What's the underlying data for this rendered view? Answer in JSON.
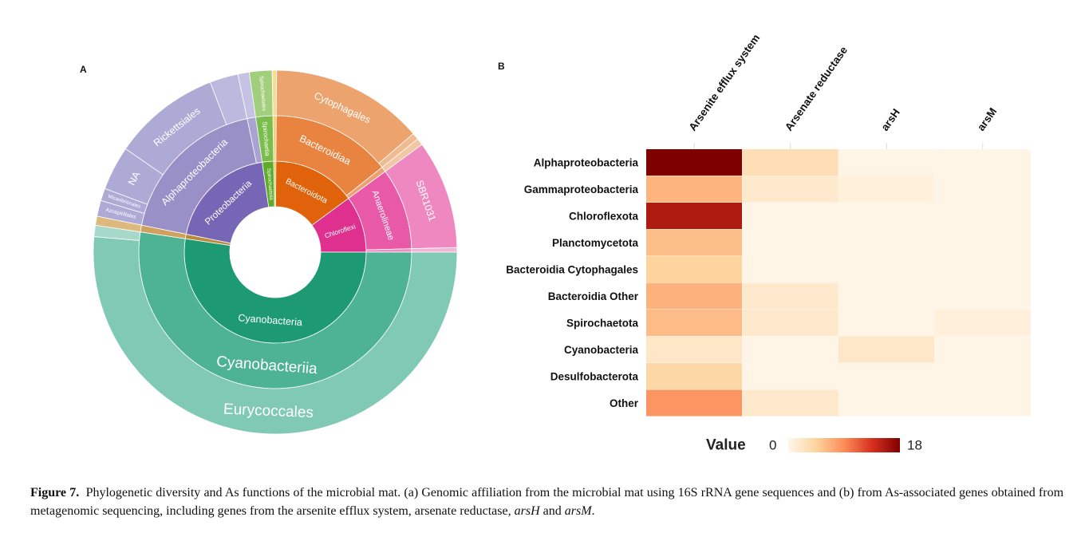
{
  "panels": {
    "a_label": "A",
    "b_label": "B"
  },
  "caption": {
    "figure_label": "Figure 7.",
    "text_1": "Phylogenetic diversity and As functions of the microbial mat. (a) Genomic affiliation from the microbial mat using 16S rRNA gene sequences and (b) from As-associated genes obtained from metagenomic sequencing, including genes from the arsenite efflux system, arsenate reductase, ",
    "italic_1": "arsH",
    "text_2": " and ",
    "italic_2": "arsM",
    "text_3": "."
  },
  "chart_data": [
    {
      "type": "sunburst",
      "unit": "relative abundance (%)",
      "nodes": [
        {
          "name": "",
          "value": 0.4,
          "color": "#f2c14e",
          "children": [
            {
              "name": "",
              "value": 0.4,
              "color": "#f5cf70",
              "children": [
                {
                  "name": "",
                  "value": 0.4,
                  "color": "#f7dc95"
                }
              ]
            }
          ]
        },
        {
          "name": "Bacteroidota",
          "value": 14.7,
          "color": "#e0620a",
          "children": [
            {
              "name": "Bacteroidiaa",
              "value": 14.1,
              "color": "#e8843f",
              "children": [
                {
                  "name": "Cytophagales",
                  "value": 13.5,
                  "color": "#eca36d"
                },
                {
                  "name": "",
                  "value": 0.6,
                  "color": "#f0bb90"
                }
              ]
            },
            {
              "name": "",
              "value": 0.6,
              "color": "#eda070",
              "children": [
                {
                  "name": "",
                  "value": 0.6,
                  "color": "#f2c7a5"
                }
              ]
            }
          ]
        },
        {
          "name": "Chloroflexi",
          "value": 10.0,
          "color": "#e0308f",
          "children": [
            {
              "name": "Anaerolineae",
              "value": 9.6,
              "color": "#e85aa8",
              "children": [
                {
                  "name": "SBR1031",
                  "value": 9.6,
                  "color": "#ef88c0"
                }
              ]
            },
            {
              "name": "",
              "value": 0.4,
              "color": "#ee8cc0",
              "children": [
                {
                  "name": "",
                  "value": 0.4,
                  "color": "#f4b3d6"
                }
              ]
            }
          ]
        },
        {
          "name": "Cyanobacteria",
          "value": 52.0,
          "color": "#1e9a72",
          "children": [
            {
              "name": "Cyanobacteriia",
              "value": 52.0,
              "color": "#4db393",
              "children": [
                {
                  "name": "Eurycoccales",
                  "value": 51.0,
                  "color": "#80c9b2"
                },
                {
                  "name": "",
                  "value": 1.0,
                  "color": "#a6d9c9"
                }
              ]
            }
          ]
        },
        {
          "name": "",
          "value": 0.8,
          "color": "#b98a3a",
          "children": [
            {
              "name": "",
              "value": 0.8,
              "color": "#cfa15c",
              "children": [
                {
                  "name": "",
                  "value": 0.8,
                  "color": "#ddb97e"
                }
              ]
            }
          ]
        },
        {
          "name": "Proteobacteria",
          "value": 19.4,
          "color": "#7766b5",
          "children": [
            {
              "name": "Alphaproteobacteria",
              "value": 18.4,
              "color": "#9990c8",
              "children": [
                {
                  "name": "Azospirillales",
                  "value": 1.4,
                  "color": "#aeaad6"
                },
                {
                  "name": "Micavibrionales",
                  "value": 1.1,
                  "color": "#aeaad6"
                },
                {
                  "name": "NA",
                  "value": 3.9,
                  "color": "#aeaad6"
                },
                {
                  "name": "Rickettsiales",
                  "value": 9.5,
                  "color": "#aeaad6"
                },
                {
                  "name": "",
                  "value": 2.5,
                  "color": "#bdb9de"
                }
              ]
            },
            {
              "name": "",
              "value": 1.0,
              "color": "#a9a3d2",
              "children": [
                {
                  "name": "",
                  "value": 1.0,
                  "color": "#c6c2e3"
                }
              ]
            }
          ]
        },
        {
          "name": "Spirochaetota",
          "value": 2.0,
          "color": "#5fac2a",
          "children": [
            {
              "name": "Spirochaetia",
              "value": 2.0,
              "color": "#7bbd4c",
              "children": [
                {
                  "name": "Spirochaetales",
                  "value": 2.0,
                  "color": "#a2cf7d"
                }
              ]
            }
          ]
        }
      ]
    },
    {
      "type": "heatmap",
      "columns": [
        "Arsenite efflux system",
        "Arsenate reductase",
        "arsH",
        "arsM"
      ],
      "rows": [
        "Alphaproteobacteria",
        "Gammaproteobacteria",
        "Chloroflexota",
        "Planctomycetota",
        "Bacteroidia Cytophagales",
        "Bacteroidia Other",
        "Spirochaetota",
        "Cyanobacteria",
        "Desulfobacterota",
        "Other"
      ],
      "values": [
        [
          18,
          3.2,
          0.3,
          0.3
        ],
        [
          6.5,
          1.8,
          0.9,
          0.3
        ],
        [
          15.5,
          0.3,
          0.3,
          0.3
        ],
        [
          5.8,
          0.3,
          0.3,
          0.3
        ],
        [
          4.5,
          0.3,
          0.3,
          0.3
        ],
        [
          6.7,
          1.8,
          0.3,
          0.3
        ],
        [
          6.0,
          1.8,
          0.3,
          1.0
        ],
        [
          2.2,
          0.3,
          2.0,
          0.3
        ],
        [
          4.0,
          0.3,
          0.3,
          0.3
        ],
        [
          8.5,
          1.8,
          0.3,
          0.3
        ]
      ],
      "colorbar": {
        "title": "Value",
        "min": 0,
        "max": 18,
        "min_label": "0",
        "max_label": "18",
        "colors": [
          "#fff7ec",
          "#fdd49e",
          "#fc8d59",
          "#d7301f",
          "#7f0000"
        ]
      }
    }
  ]
}
